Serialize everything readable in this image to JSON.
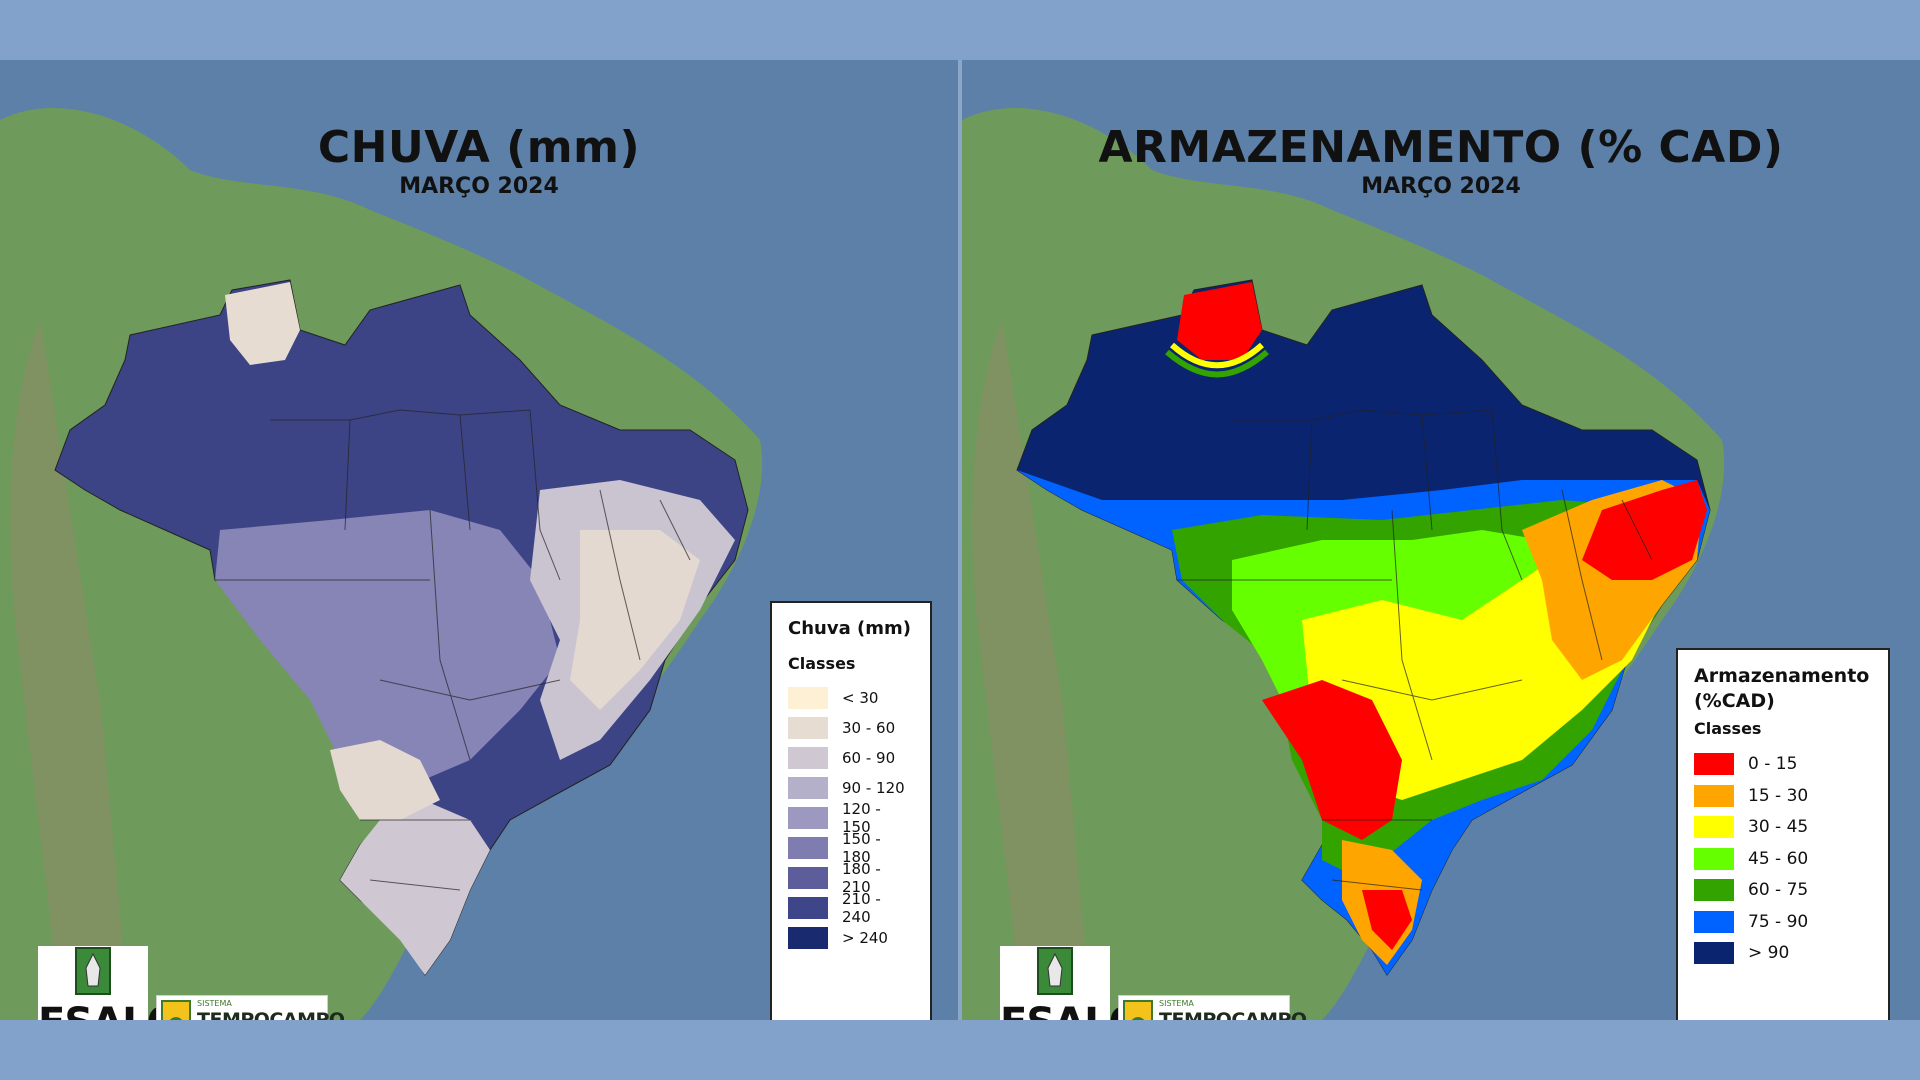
{
  "left_map": {
    "title": "CHUVA (mm)",
    "subtitle": "MARÇO 2024",
    "legend": {
      "title": "Chuva (mm)",
      "classes_label": "Classes",
      "items": [
        {
          "label": "< 30",
          "color": "#fdf0d5"
        },
        {
          "label": "30 - 60",
          "color": "#e6dcd2"
        },
        {
          "label": "60 - 90",
          "color": "#cfc8d2"
        },
        {
          "label": "90 - 120",
          "color": "#b4b0ca"
        },
        {
          "label": "120 - 150",
          "color": "#9c98bf"
        },
        {
          "label": "150 - 180",
          "color": "#7f7cb0"
        },
        {
          "label": "180 - 210",
          "color": "#5d5d9c"
        },
        {
          "label": "210 - 240",
          "color": "#3e4589"
        },
        {
          "label": "> 240",
          "color": "#1a2a6e"
        }
      ]
    }
  },
  "right_map": {
    "title": "ARMAZENAMENTO (% CAD)",
    "subtitle": "MARÇO 2024",
    "legend": {
      "title": "Armazenamento (%CAD)",
      "classes_label": "Classes",
      "items": [
        {
          "label": "0 - 15",
          "color": "#ff0000"
        },
        {
          "label": "15 - 30",
          "color": "#ffa500"
        },
        {
          "label": "30 - 45",
          "color": "#ffff00"
        },
        {
          "label": "45 - 60",
          "color": "#66ff00"
        },
        {
          "label": "60 - 75",
          "color": "#33a300"
        },
        {
          "label": "75 - 90",
          "color": "#0063ff"
        },
        {
          "label": "> 90",
          "color": "#0a2470"
        }
      ]
    }
  },
  "logos": {
    "esalq": "ESALQ",
    "tempocampo_small": "SISTEMA",
    "tempocampo": "TEMPOCAMPO"
  },
  "colors": {
    "ocean": "#5d80a8",
    "land": "#6f9a5e",
    "page_background": "#82a2cc"
  }
}
